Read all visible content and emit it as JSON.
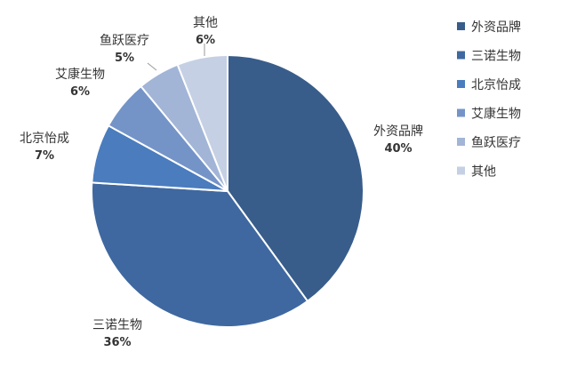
{
  "chart_data": {
    "type": "pie",
    "title": "",
    "slices": [
      {
        "label": "外资品牌",
        "value": 40,
        "pct_label": "40%",
        "color": "#385D8A"
      },
      {
        "label": "三诺生物",
        "value": 36,
        "pct_label": "36%",
        "color": "#3F68A0"
      },
      {
        "label": "北京怡成",
        "value": 7,
        "pct_label": "7%",
        "color": "#4A7CBE"
      },
      {
        "label": "艾康生物",
        "value": 6,
        "pct_label": "6%",
        "color": "#7494C8"
      },
      {
        "label": "鱼跃医疗",
        "value": 5,
        "pct_label": "5%",
        "color": "#A2B5D7"
      },
      {
        "label": "其他",
        "value": 6,
        "pct_label": "6%",
        "color": "#C5D0E4"
      }
    ],
    "legend": {
      "position": "right",
      "entries": [
        "外资品牌",
        "三诺生物",
        "北京怡成",
        "艾康生物",
        "鱼跃医疗",
        "其他"
      ]
    }
  }
}
